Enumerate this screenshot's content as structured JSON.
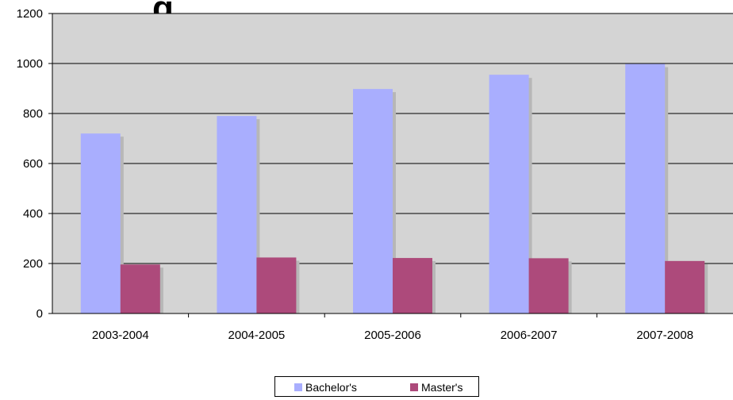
{
  "title_fragment": "g",
  "chart_data": {
    "type": "bar",
    "categories": [
      "2003-2004",
      "2004-2005",
      "2005-2006",
      "2006-2007",
      "2007-2008"
    ],
    "series": [
      {
        "name": "Bachelor's",
        "values": [
          720,
          790,
          898,
          955,
          998
        ],
        "color": "#a9aefe",
        "shadow": "#b7b7b7"
      },
      {
        "name": "Master's",
        "values": [
          196,
          224,
          222,
          221,
          210
        ],
        "color": "#ad4a7b",
        "shadow": "#b7b7b7"
      }
    ],
    "ylim": [
      0,
      1200
    ],
    "yticks": [
      0,
      200,
      400,
      600,
      800,
      1000,
      1200
    ],
    "grid": true,
    "plot_background": "#d4d4d4",
    "legend_placement": "bottom"
  }
}
